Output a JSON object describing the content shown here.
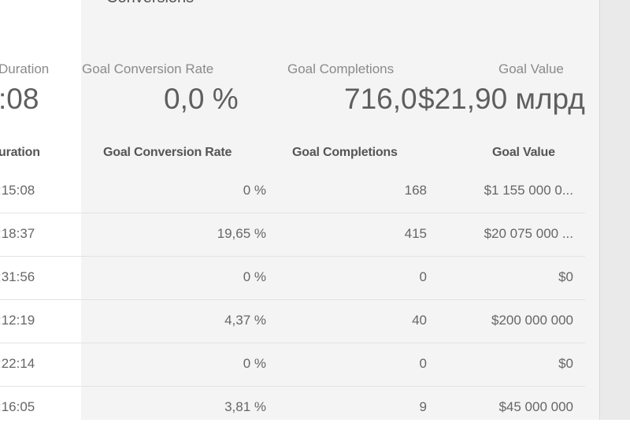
{
  "section": {
    "title": "Conversions"
  },
  "summary": [
    {
      "label": "Duration",
      "value": ":08"
    },
    {
      "label": "Goal Conversion Rate",
      "value": "0,0 %"
    },
    {
      "label": "Goal Completions",
      "value": "716,0"
    },
    {
      "label": "Goal Value",
      "value": "$21,90 млрд"
    }
  ],
  "table": {
    "columns": [
      "uration",
      "Goal Conversion Rate",
      "Goal Completions",
      "Goal Value"
    ],
    "rows": [
      {
        "duration": ":15:08",
        "rate": "0 %",
        "completions": "168",
        "value": "$1 155 000 0..."
      },
      {
        "duration": ":18:37",
        "rate": "19,65 %",
        "completions": "415",
        "value": "$20 075 000 ..."
      },
      {
        "duration": ":31:56",
        "rate": "0 %",
        "completions": "0",
        "value": "$0"
      },
      {
        "duration": ":12:19",
        "rate": "4,37 %",
        "completions": "40",
        "value": "$200 000 000"
      },
      {
        "duration": ":22:14",
        "rate": "0 %",
        "completions": "0",
        "value": "$0"
      },
      {
        "duration": ":16:05",
        "rate": "3,81 %",
        "completions": "9",
        "value": "$45 000 000"
      }
    ]
  }
}
